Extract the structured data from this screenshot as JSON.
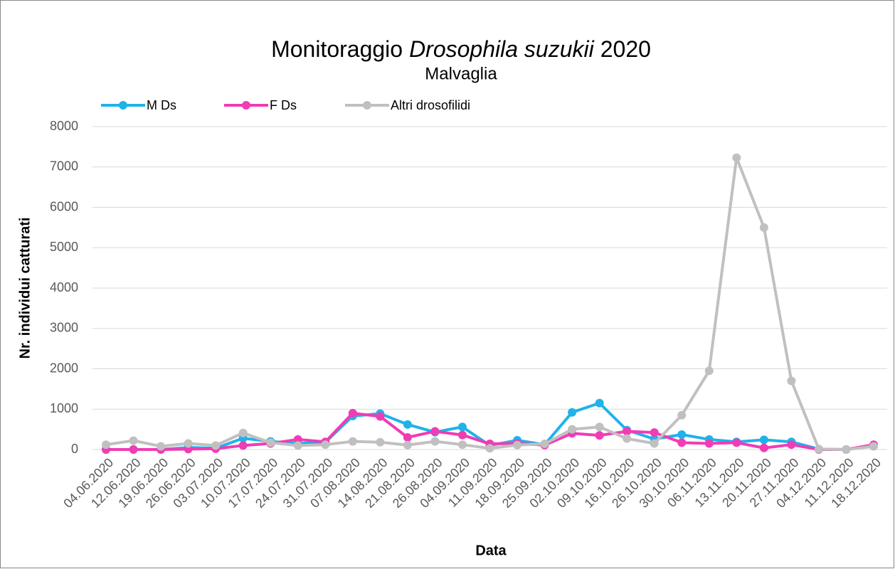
{
  "chart_data": {
    "type": "line",
    "title": [
      "Monitoraggio",
      "Drosophila suzukii",
      "2020"
    ],
    "title_italic": [
      false,
      true,
      false
    ],
    "subtitle": "Malvaglia",
    "x_label": "Data",
    "y_label": "Nr. individui catturati",
    "categories": [
      "04.06.2020",
      "12.06.2020",
      "19.06.2020",
      "26.06.2020",
      "03.07.2020",
      "10.07.2020",
      "17.07.2020",
      "24.07.2020",
      "31.07.2020",
      "07.08.2020",
      "14.08.2020",
      "21.08.2020",
      "26.08.2020",
      "04.09.2020",
      "11.09.2020",
      "18.09.2020",
      "25.09.2020",
      "02.10.2020",
      "09.10.2020",
      "16.10.2020",
      "26.10.2020",
      "30.10.2020",
      "06.11.2020",
      "13.11.2020",
      "20.11.2020",
      "27.11.2020",
      "04.12.2020",
      "11.12.2020",
      "18.12.2020"
    ],
    "series": [
      {
        "name": "M Ds",
        "color": "#1fb3ea",
        "values": [
          0,
          0,
          0,
          50,
          30,
          280,
          200,
          150,
          180,
          830,
          890,
          620,
          430,
          560,
          100,
          230,
          120,
          920,
          1150,
          480,
          260,
          370,
          250,
          190,
          240,
          190,
          10,
          0,
          100
        ]
      },
      {
        "name": "F Ds",
        "color": "#f03cb5",
        "values": [
          0,
          0,
          0,
          10,
          20,
          100,
          150,
          250,
          190,
          900,
          820,
          300,
          450,
          360,
          140,
          150,
          110,
          400,
          350,
          450,
          420,
          170,
          150,
          170,
          40,
          120,
          0,
          0,
          120
        ]
      },
      {
        "name": "Altri drosofilidi",
        "color": "#c0c0c0",
        "values": [
          120,
          220,
          80,
          150,
          100,
          410,
          170,
          100,
          120,
          200,
          180,
          110,
          200,
          120,
          30,
          110,
          140,
          500,
          560,
          270,
          150,
          850,
          1950,
          7230,
          5500,
          1700,
          10,
          0,
          80
        ]
      }
    ],
    "ylim": [
      0,
      8000
    ],
    "yticks": [
      0,
      1000,
      2000,
      3000,
      4000,
      5000,
      6000,
      7000,
      8000
    ],
    "grid": true,
    "legend": "top-left"
  }
}
